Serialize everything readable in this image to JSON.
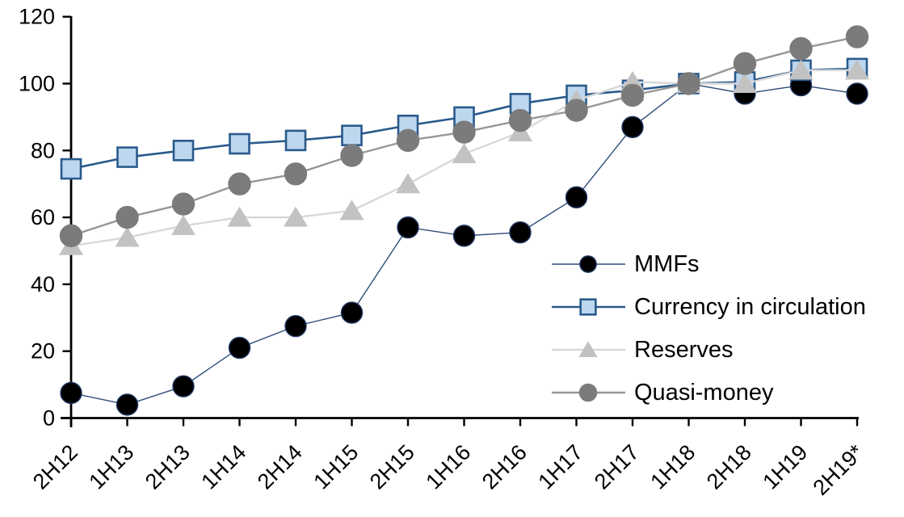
{
  "chart_data": {
    "type": "line",
    "title": "",
    "categories": [
      "2H12",
      "1H13",
      "2H13",
      "1H14",
      "2H14",
      "1H15",
      "2H15",
      "1H16",
      "2H16",
      "1H17",
      "2H17",
      "1H18",
      "2H18",
      "1H19",
      "2H19*"
    ],
    "series": [
      {
        "name": "MMFs",
        "marker": "circle",
        "marker_fill": "#000000",
        "marker_stroke": "#1F3864",
        "line_color": "#2E4D7B",
        "line_width": 1.4,
        "values": [
          7.5,
          4,
          9.5,
          21,
          27.5,
          31.5,
          57,
          54.5,
          55.5,
          66,
          87,
          100,
          97,
          99.5,
          97
        ]
      },
      {
        "name": "Currency in circulation",
        "marker": "square",
        "marker_fill": "#BDD7EE",
        "marker_stroke": "#2A5A8C",
        "line_color": "#2A5A8C",
        "line_width": 2.6,
        "values": [
          74.5,
          78,
          80,
          82,
          83,
          84.5,
          87.5,
          90,
          94,
          96.5,
          98,
          100,
          100.5,
          104,
          104.5
        ]
      },
      {
        "name": "Reserves",
        "marker": "triangle",
        "marker_fill": "#C2C2C2",
        "marker_stroke": "#C2C2C2",
        "line_color": "#D8D8D8",
        "line_width": 2.4,
        "values": [
          51.5,
          54,
          57.5,
          60,
          60,
          62,
          70,
          79,
          85.5,
          95,
          100.5,
          100,
          100,
          104,
          104
        ]
      },
      {
        "name": "Quasi-money",
        "marker": "circle",
        "marker_fill": "#7B7B7B",
        "marker_stroke": "#7B7B7B",
        "line_color": "#969696",
        "line_width": 2.4,
        "values": [
          54.5,
          60,
          64,
          70,
          73,
          78.5,
          83,
          85.5,
          89,
          92,
          96.5,
          100,
          106,
          110.5,
          114
        ]
      }
    ],
    "yticks": [
      0,
      20,
      40,
      60,
      80,
      100,
      120
    ],
    "ylim": [
      0,
      120
    ],
    "grid": false,
    "legend_position": "inside-right",
    "axis_color": "#000000",
    "text_color": "#000000"
  }
}
